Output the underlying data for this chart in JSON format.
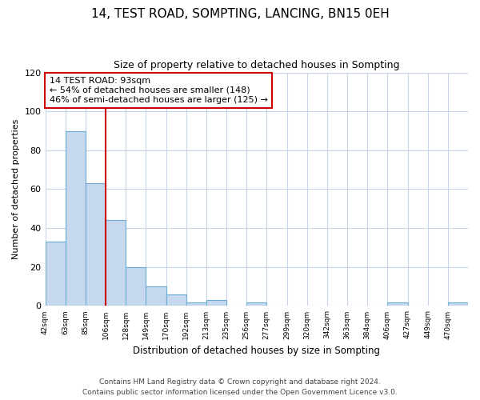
{
  "title": "14, TEST ROAD, SOMPTING, LANCING, BN15 0EH",
  "subtitle": "Size of property relative to detached houses in Sompting",
  "xlabel": "Distribution of detached houses by size in Sompting",
  "ylabel": "Number of detached properties",
  "bin_labels": [
    "42sqm",
    "63sqm",
    "85sqm",
    "106sqm",
    "128sqm",
    "149sqm",
    "170sqm",
    "192sqm",
    "213sqm",
    "235sqm",
    "256sqm",
    "277sqm",
    "299sqm",
    "320sqm",
    "342sqm",
    "363sqm",
    "384sqm",
    "406sqm",
    "427sqm",
    "449sqm",
    "470sqm"
  ],
  "bar_values": [
    33,
    90,
    63,
    44,
    20,
    10,
    6,
    2,
    3,
    0,
    2,
    0,
    0,
    0,
    0,
    0,
    0,
    2,
    0,
    0,
    2
  ],
  "bar_color": "#c5d8ed",
  "bar_edge_color": "#6aaed6",
  "vline_color": "#cc0000",
  "vline_x_index": 3,
  "ylim": [
    0,
    120
  ],
  "yticks": [
    0,
    20,
    40,
    60,
    80,
    100,
    120
  ],
  "annotation_title": "14 TEST ROAD: 93sqm",
  "annotation_line1": "← 54% of detached houses are smaller (148)",
  "annotation_line2": "46% of semi-detached houses are larger (125) →",
  "annotation_box_color": "#ffffff",
  "annotation_box_edge": "#cc0000",
  "footer1": "Contains HM Land Registry data © Crown copyright and database right 2024.",
  "footer2": "Contains public sector information licensed under the Open Government Licence v3.0.",
  "background_color": "#ffffff",
  "grid_color": "#c8d4e8"
}
